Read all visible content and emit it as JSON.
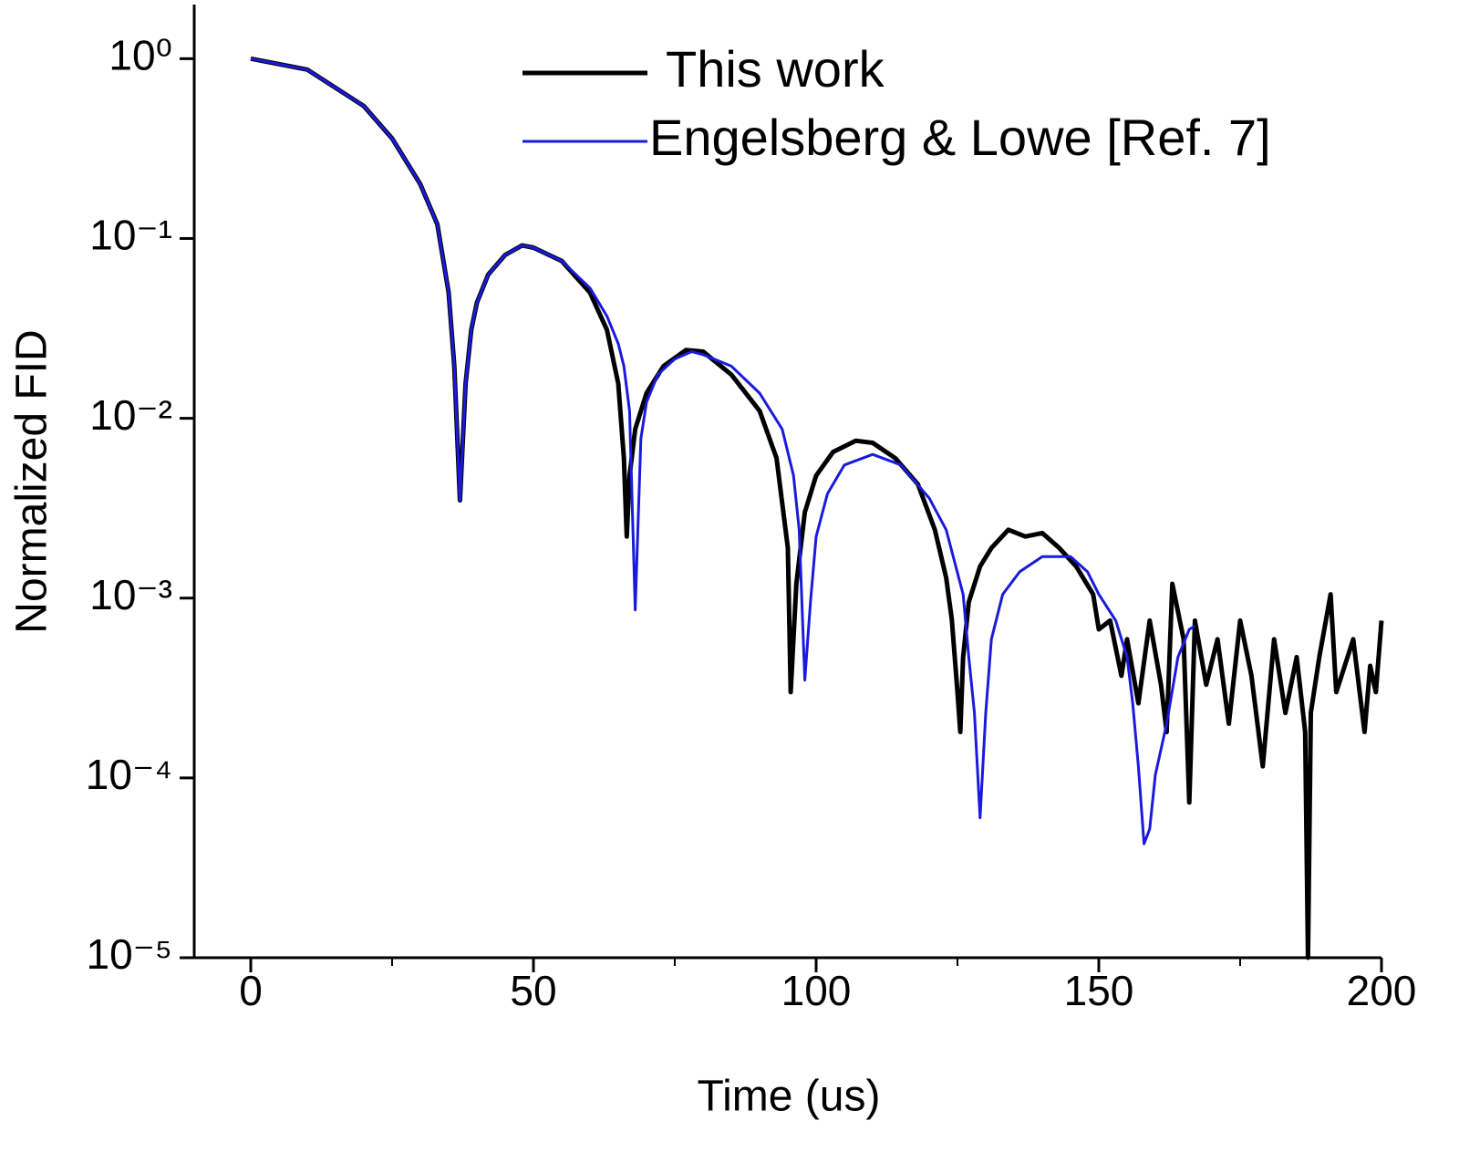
{
  "chart_data": {
    "type": "line",
    "x_label": "Time (us)",
    "y_label": "Normalized FID",
    "xlim": [
      -10,
      200
    ],
    "xticks": [
      0,
      50,
      100,
      150,
      200
    ],
    "xminorticks": [
      25,
      75,
      125,
      175
    ],
    "ylim": [
      1e-05,
      2
    ],
    "ylog": true,
    "yticks": [
      {
        "value": 1,
        "label": "10⁰"
      },
      {
        "value": 0.1,
        "label": "10⁻¹"
      },
      {
        "value": 0.01,
        "label": "10⁻²"
      },
      {
        "value": 0.001,
        "label": "10⁻³"
      },
      {
        "value": 0.0001,
        "label": "10⁻⁴"
      },
      {
        "value": 1e-05,
        "label": "10⁻⁵"
      }
    ],
    "grid": false,
    "legend": "upper center",
    "series": [
      {
        "name": "This work",
        "color": "#000000",
        "x": [
          0,
          10,
          20,
          25,
          30,
          33,
          35,
          36,
          37,
          38,
          39,
          40,
          42,
          45,
          48,
          50,
          55,
          60,
          63,
          65,
          66,
          66.5,
          67,
          68,
          70,
          73,
          77,
          80,
          85,
          90,
          93,
          95,
          95.5,
          96.5,
          98,
          100,
          103,
          107,
          110,
          114,
          118,
          121,
          123,
          124,
          125,
          125.5,
          126,
          127,
          129,
          131,
          134,
          137,
          140,
          143,
          146,
          149,
          150,
          152,
          154,
          155,
          157,
          159,
          161,
          162,
          163,
          165,
          166,
          167,
          169,
          171,
          173,
          175,
          177,
          179,
          181,
          183,
          185,
          186.5,
          187,
          187.5,
          189,
          191,
          192,
          194,
          195,
          197,
          198,
          199,
          200
        ],
        "values": [
          1.0,
          0.87,
          0.545,
          0.36,
          0.2,
          0.12,
          0.05,
          0.0195,
          0.0035,
          0.0156,
          0.031,
          0.044,
          0.063,
          0.081,
          0.0915,
          0.089,
          0.075,
          0.05,
          0.031,
          0.0156,
          0.006,
          0.0022,
          0.0048,
          0.0087,
          0.0138,
          0.0195,
          0.024,
          0.0235,
          0.0175,
          0.011,
          0.006,
          0.0019,
          0.0003,
          0.0012,
          0.003,
          0.0048,
          0.0065,
          0.0075,
          0.0073,
          0.006,
          0.0043,
          0.0024,
          0.0013,
          0.00076,
          0.0003,
          0.00018,
          0.00047,
          0.00095,
          0.0015,
          0.0019,
          0.0024,
          0.0022,
          0.0023,
          0.0019,
          0.0015,
          0.00105,
          0.00067,
          0.00075,
          0.00037,
          0.00059,
          0.00026,
          0.00075,
          0.00033,
          0.00018,
          0.0012,
          0.00059,
          7.3e-05,
          0.00075,
          0.00033,
          0.00059,
          0.0002,
          0.00075,
          0.00037,
          0.000116,
          0.00059,
          0.00023,
          0.00047,
          0.00018,
          1e-05,
          0.00023,
          0.00047,
          0.00105,
          0.0003,
          0.00047,
          0.00059,
          0.00018,
          0.00042,
          0.0003,
          0.00075
        ]
      },
      {
        "name": "Engelsberg & Lowe [Ref. 7]",
        "color": "#1a1adc",
        "x": [
          0,
          10,
          20,
          25,
          30,
          33,
          35,
          36,
          37,
          38,
          39,
          40,
          42,
          45,
          48,
          50,
          55,
          60,
          63,
          65,
          66,
          67,
          68,
          69,
          70,
          72,
          75,
          78,
          80,
          85,
          90,
          94,
          96,
          97,
          98,
          99,
          100,
          102,
          105,
          110,
          115,
          120,
          123,
          126,
          127,
          128,
          129,
          130,
          131,
          133,
          136,
          140,
          145,
          148,
          150,
          153,
          155,
          156,
          157,
          158,
          159,
          160,
          162,
          164,
          166,
          167
        ],
        "values": [
          1.0,
          0.87,
          0.545,
          0.36,
          0.2,
          0.12,
          0.05,
          0.0195,
          0.0035,
          0.0156,
          0.031,
          0.044,
          0.063,
          0.081,
          0.0915,
          0.089,
          0.075,
          0.053,
          0.037,
          0.026,
          0.0195,
          0.011,
          0.00086,
          0.0077,
          0.0123,
          0.0175,
          0.0214,
          0.0235,
          0.0226,
          0.0195,
          0.0138,
          0.0087,
          0.0048,
          0.0024,
          0.00035,
          0.00095,
          0.0022,
          0.0038,
          0.0055,
          0.0063,
          0.0055,
          0.0036,
          0.0024,
          0.00105,
          0.00047,
          0.00023,
          6e-05,
          0.00023,
          0.00059,
          0.00105,
          0.0014,
          0.0017,
          0.0017,
          0.0014,
          0.00105,
          0.00075,
          0.00047,
          0.00026,
          0.000116,
          4.3e-05,
          5.2e-05,
          0.000104,
          0.0002,
          0.00047,
          0.00067,
          0.0007
        ]
      }
    ]
  }
}
